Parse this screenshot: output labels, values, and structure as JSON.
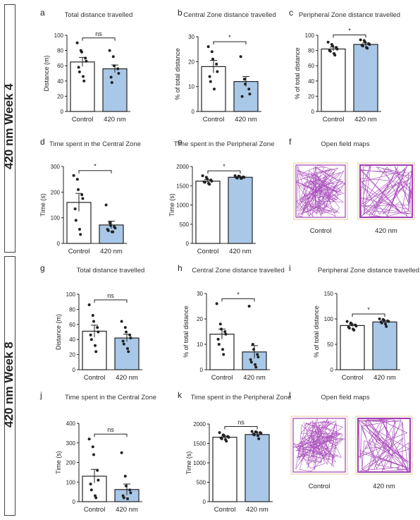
{
  "sections": [
    {
      "label": "420 nm Week 4"
    },
    {
      "label": "420 nm Week 8"
    }
  ],
  "colors": {
    "control_fill": "#ffffff",
    "treated_fill": "#a9c8e8",
    "map_line": "#a23fb5",
    "map_border": "#e8c9a0"
  },
  "maps": [
    {
      "panel": "f",
      "title": "Open field maps",
      "labels": [
        "Control",
        "420 nm"
      ]
    },
    {
      "panel": "l",
      "title": "Open field maps",
      "labels": [
        "Control",
        "420 nm"
      ]
    }
  ],
  "chart_data": [
    {
      "panel": "a",
      "type": "bar",
      "title": "Total distance travelled",
      "categories": [
        "Control",
        "420 nm"
      ],
      "values": [
        65,
        56
      ],
      "errors": [
        6,
        5
      ],
      "ylabel": "Distance (m)",
      "ylim": [
        0,
        100
      ],
      "yticks": [
        0,
        20,
        40,
        60,
        80,
        100
      ],
      "significance": "ns",
      "points": [
        [
          90,
          80,
          78,
          70,
          66,
          58,
          52,
          46,
          40
        ],
        [
          80,
          72,
          60,
          56,
          50,
          45,
          38
        ]
      ]
    },
    {
      "panel": "b",
      "type": "bar",
      "title": "Central Zone distance travelled",
      "categories": [
        "Control",
        "420 nm"
      ],
      "values": [
        18,
        12
      ],
      "errors": [
        2.5,
        2
      ],
      "ylabel": "% of total distance",
      "ylim": [
        0,
        30
      ],
      "yticks": [
        0,
        10,
        20,
        30
      ],
      "significance": "*",
      "points": [
        [
          26,
          24,
          21,
          19,
          16,
          14,
          12,
          9
        ],
        [
          22,
          13,
          11,
          9,
          7,
          6
        ]
      ]
    },
    {
      "panel": "c",
      "type": "bar",
      "title": "Peripheral Zone distance travelled",
      "categories": [
        "Control",
        "420 nm"
      ],
      "values": [
        82,
        88
      ],
      "errors": [
        2.5,
        2
      ],
      "ylabel": "% of total distance",
      "ylim": [
        0,
        100
      ],
      "yticks": [
        0,
        20,
        40,
        60,
        80,
        100
      ],
      "significance": "*",
      "points": [
        [
          91,
          88,
          86,
          84,
          82,
          80,
          79,
          76,
          74
        ],
        [
          94,
          93,
          91,
          89,
          88,
          87,
          86,
          84,
          83
        ]
      ]
    },
    {
      "panel": "d",
      "type": "bar",
      "title": "Time spent in the Central Zone",
      "categories": [
        "Control",
        "420 nm"
      ],
      "values": [
        160,
        72
      ],
      "errors": [
        35,
        15
      ],
      "ylabel": "Time (s)",
      "ylim": [
        0,
        300
      ],
      "yticks": [
        0,
        100,
        200,
        300
      ],
      "significance": "*",
      "points": [
        [
          265,
          250,
          210,
          190,
          175,
          135,
          90,
          55,
          35
        ],
        [
          150,
          80,
          70,
          65,
          60,
          55,
          50,
          45,
          45
        ]
      ]
    },
    {
      "panel": "e",
      "type": "bar",
      "title": "Time spent in the Peripheral Zone",
      "categories": [
        "Control",
        "420 nm"
      ],
      "values": [
        1620,
        1720
      ],
      "errors": [
        40,
        15
      ],
      "ylabel": "Time (s)",
      "ylim": [
        0,
        2000
      ],
      "yticks": [
        0,
        500,
        1000,
        1500,
        2000
      ],
      "significance": "*",
      "points": [
        [
          1760,
          1720,
          1680,
          1650,
          1620,
          1600,
          1590,
          1560,
          1540
        ],
        [
          1760,
          1750,
          1740,
          1730,
          1720,
          1710,
          1700,
          1690,
          1700
        ]
      ]
    },
    {
      "panel": "g",
      "type": "bar",
      "title": "Total distance travelled",
      "categories": [
        "Control",
        "420 nm"
      ],
      "values": [
        51,
        42
      ],
      "errors": [
        8,
        5
      ],
      "ylabel": "Distance (m)",
      "ylim": [
        0,
        100
      ],
      "yticks": [
        0,
        20,
        40,
        60,
        80,
        100
      ],
      "significance": "ns",
      "points": [
        [
          86,
          72,
          64,
          56,
          50,
          46,
          40,
          32,
          24
        ],
        [
          64,
          56,
          50,
          46,
          42,
          38,
          34,
          28,
          24
        ]
      ]
    },
    {
      "panel": "h",
      "type": "bar",
      "title": "Central Zone distance travelled",
      "categories": [
        "Control",
        "420 nm"
      ],
      "values": [
        14,
        7
      ],
      "errors": [
        2,
        2.5
      ],
      "ylabel": "% of total distance",
      "ylim": [
        0,
        30
      ],
      "yticks": [
        0,
        10,
        20,
        30
      ],
      "significance": "*",
      "points": [
        [
          26,
          18,
          16,
          15,
          14,
          12,
          10,
          8,
          6
        ],
        [
          25,
          10,
          8,
          6,
          5,
          4,
          3,
          2,
          1
        ]
      ]
    },
    {
      "panel": "i",
      "type": "bar",
      "title": "Peripheral Zone distance travelled",
      "categories": [
        "Control",
        "420 nm"
      ],
      "values": [
        87,
        94
      ],
      "errors": [
        2.5,
        3
      ],
      "ylabel": "% of total distance",
      "ylim": [
        0,
        150
      ],
      "yticks": [
        0,
        50,
        100,
        150
      ],
      "significance": "*",
      "points": [
        [
          95,
          92,
          90,
          88,
          86,
          84,
          82,
          80,
          78
        ],
        [
          100,
          99,
          97,
          96,
          95,
          94,
          92,
          90,
          85
        ]
      ]
    },
    {
      "panel": "j",
      "type": "bar",
      "title": "Time spent in the Central Zone",
      "categories": [
        "Control",
        "420 nm"
      ],
      "values": [
        130,
        62
      ],
      "errors": [
        35,
        28
      ],
      "ylabel": "Time (s)",
      "ylim": [
        0,
        400
      ],
      "yticks": [
        0,
        100,
        200,
        300,
        400
      ],
      "significance": "ns",
      "points": [
        [
          320,
          280,
          240,
          160,
          110,
          90,
          60,
          30,
          20
        ],
        [
          250,
          130,
          80,
          60,
          45,
          30,
          20,
          15
        ]
      ]
    },
    {
      "panel": "k",
      "type": "bar",
      "title": "Time spent in the Peripheral Zone",
      "categories": [
        "Control",
        "420 nm"
      ],
      "values": [
        1660,
        1730
      ],
      "errors": [
        30,
        35
      ],
      "ylabel": "Time (s)",
      "ylim": [
        0,
        2000
      ],
      "yticks": [
        0,
        500,
        1000,
        1500,
        2000
      ],
      "significance": "ns",
      "points": [
        [
          1780,
          1720,
          1700,
          1680,
          1660,
          1640,
          1620,
          1600,
          1560
        ],
        [
          1810,
          1800,
          1790,
          1780,
          1760,
          1740,
          1720,
          1700,
          1620
        ]
      ]
    }
  ]
}
